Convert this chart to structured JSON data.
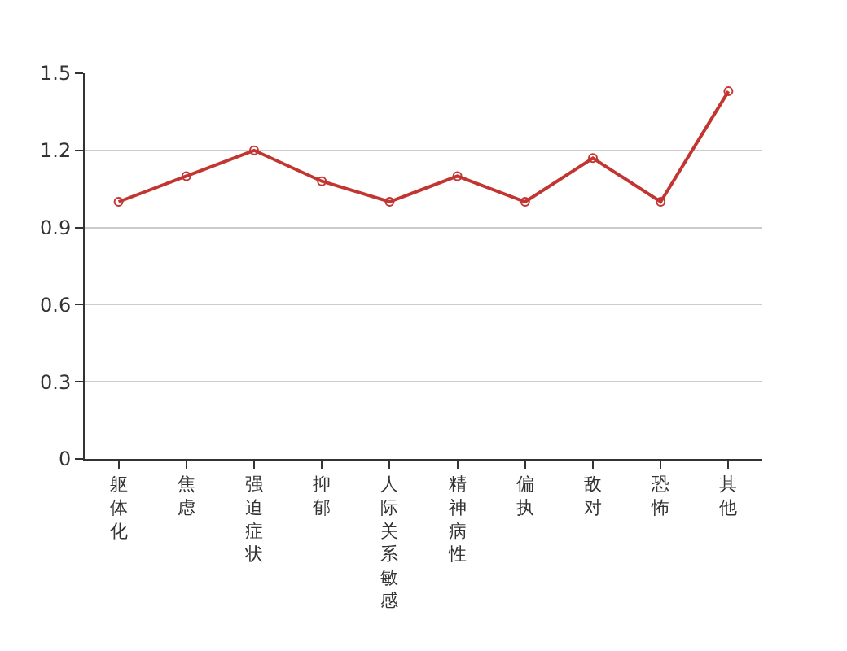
{
  "chart_data": {
    "type": "line",
    "categories": [
      "躯体化",
      "焦虑",
      "强迫症状",
      "抑郁",
      "人际关系敏感",
      "精神病性",
      "偏执",
      "敌对",
      "恐怖",
      "其他"
    ],
    "series": [
      {
        "color": "#c23531",
        "values": [
          1.0,
          1.1,
          1.2,
          1.08,
          1.0,
          1.1,
          1.0,
          1.17,
          1.0,
          1.43
        ]
      }
    ],
    "ylim": [
      0,
      1.5
    ],
    "yticks": [
      {
        "value": 0,
        "label": "0"
      },
      {
        "value": 0.3,
        "label": "0.3"
      },
      {
        "value": 0.6,
        "label": "0.6"
      },
      {
        "value": 0.9,
        "label": "0.9"
      },
      {
        "value": 1.2,
        "label": "1.2"
      },
      {
        "value": 1.5,
        "label": "1.5"
      }
    ],
    "grid": "y",
    "marker": "circle",
    "line_style": "solid"
  }
}
